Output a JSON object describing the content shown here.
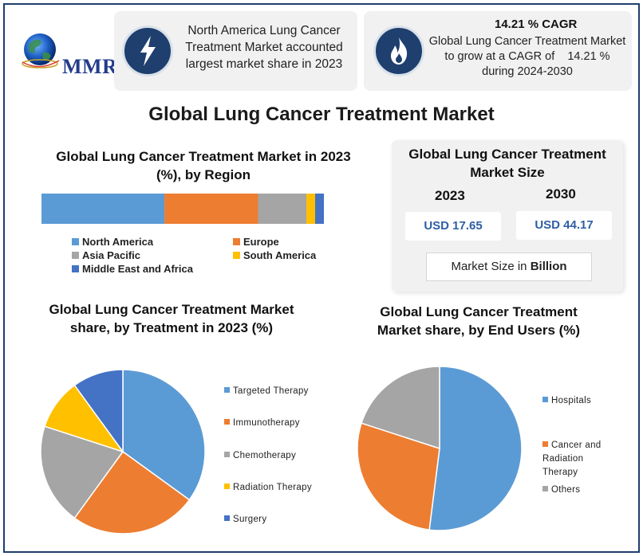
{
  "brand": {
    "name": "MMR"
  },
  "colors": {
    "blue": "#5b9bd5",
    "orange": "#ed7d31",
    "gray": "#a5a5a5",
    "yellow": "#ffc000",
    "darkblue": "#4472c4",
    "navy": "#1f3f6e"
  },
  "highlights": {
    "share_text": "North America Lung Cancer Treatment Market accounted largest market share in 2023",
    "cagr_title": "14.21 % CAGR",
    "cagr_text": "Global Lung Cancer Treatment Market to grow at a CAGR of    14.21 % during 2024-2030",
    "share_icon": "lightning-icon",
    "cagr_icon": "flame-icon"
  },
  "main_title": "Global Lung Cancer Treatment Market",
  "market_size": {
    "title": "Global Lung Cancer Treatment Market Size",
    "year1": "2023",
    "year2": "2030",
    "value1": "USD 17.65",
    "value2": "USD 44.17",
    "unit_prefix": "Market Size in",
    "unit_bold": "Billion"
  },
  "chart_data": [
    {
      "type": "bar",
      "orientation": "horizontal-stacked",
      "title": "Global Lung Cancer Treatment Market in 2023 (%), by Region",
      "categories": [
        "2023"
      ],
      "series": [
        {
          "name": "North America",
          "values": [
            42
          ],
          "color": "#5b9bd5"
        },
        {
          "name": "Europe",
          "values": [
            32
          ],
          "color": "#ed7d31"
        },
        {
          "name": "Asia Pacific",
          "values": [
            16.5
          ],
          "color": "#a5a5a5"
        },
        {
          "name": "South America",
          "values": [
            3
          ],
          "color": "#ffc000"
        },
        {
          "name": "Middle East and Africa",
          "values": [
            3
          ],
          "color": "#4472c4"
        }
      ],
      "xlim": [
        0,
        100
      ],
      "legend": "bottom"
    },
    {
      "type": "pie",
      "title": "Global Lung Cancer Treatment Market share, by Treatment in 2023 (%)",
      "labels": [
        "Targeted Therapy",
        "Immunotherapy",
        "Chemotherapy",
        "Radiation Therapy",
        "Surgery"
      ],
      "values": [
        35,
        25,
        20,
        10,
        10
      ],
      "colors": [
        "#5b9bd5",
        "#ed7d31",
        "#a5a5a5",
        "#ffc000",
        "#4472c4"
      ],
      "legend": "right"
    },
    {
      "type": "pie",
      "title": "Global Lung Cancer Treatment Market share, by End Users (%)",
      "labels": [
        "Hospitals",
        "Cancer and Radiation Therapy",
        "Others"
      ],
      "values": [
        52,
        28,
        20
      ],
      "colors": [
        "#5b9bd5",
        "#ed7d31",
        "#a5a5a5"
      ],
      "legend": "right"
    }
  ]
}
